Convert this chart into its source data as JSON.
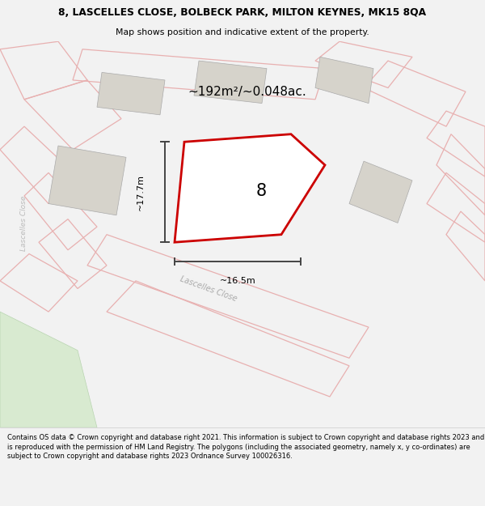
{
  "title_line1": "8, LASCELLES CLOSE, BOLBECK PARK, MILTON KEYNES, MK15 8QA",
  "title_line2": "Map shows position and indicative extent of the property.",
  "area_label": "~192m²/~0.048ac.",
  "number_label": "8",
  "dim_vertical": "~17.7m",
  "dim_horizontal": "~16.5m",
  "road_label": "Lascelles Close",
  "road_label2": "Lascelles Close",
  "footer": "Contains OS data © Crown copyright and database right 2021. This information is subject to Crown copyright and database rights 2023 and is reproduced with the permission of HM Land Registry. The polygons (including the associated geometry, namely x, y co-ordinates) are subject to Crown copyright and database rights 2023 Ordnance Survey 100026316.",
  "bg_color": "#f2f2f2",
  "map_bg": "#f2f2f2",
  "plot_fill": "#ffffff",
  "plot_edge": "#cc0000",
  "building_fill": "#d6d3cb",
  "road_stroke": "#e8b0b0",
  "dim_color": "#444444",
  "footer_bg": "#ffffff",
  "title_bg": "#ffffff",
  "green_fill": "#d8ead0"
}
